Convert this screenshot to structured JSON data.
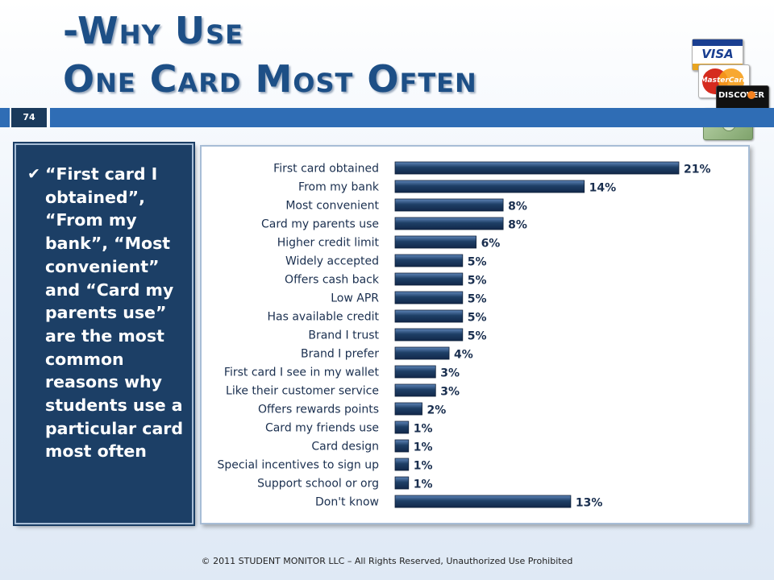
{
  "title": {
    "line1": "-Why Use",
    "line2": "One Card Most Often"
  },
  "page_number": "74",
  "colors": {
    "title": "#1d4f86",
    "band": "#2f6db5",
    "panel": "#1c3f66",
    "bar": "#1e3f66",
    "bar_light": "#5f85b8"
  },
  "card_logos": {
    "visa": "VISA",
    "mastercard": "MasterCard",
    "discover": "DISCOVER"
  },
  "bullet": {
    "icon": "checkmark-icon",
    "text": "“First card I obtained”, “From my bank”, “Most convenient” and “Card my parents use” are the most common reasons why students use a particular card most often"
  },
  "chart_data": {
    "type": "bar",
    "orientation": "horizontal",
    "categories": [
      "First card obtained",
      "From my bank",
      "Most convenient",
      "Card my parents use",
      "Higher credit limit",
      "Widely accepted",
      "Offers cash back",
      "Low APR",
      "Has available credit",
      "Brand I trust",
      "Brand I prefer",
      "First card I see in my wallet",
      "Like their customer service",
      "Offers rewards points",
      "Card my friends use",
      "Card design",
      "Special incentives to sign up",
      "Support school or org",
      "Don't know"
    ],
    "values": [
      21,
      14,
      8,
      8,
      6,
      5,
      5,
      5,
      5,
      5,
      4,
      3,
      3,
      2,
      1,
      1,
      1,
      1,
      13
    ],
    "value_labels": [
      "21%",
      "14%",
      "8%",
      "8%",
      "6%",
      "5%",
      "5%",
      "5%",
      "5%",
      "5%",
      "4%",
      "3%",
      "3%",
      "2%",
      "1%",
      "1%",
      "1%",
      "1%",
      "13%"
    ],
    "xlim": [
      0,
      21
    ],
    "grid": false,
    "legend": false
  },
  "footer": "© 2011 STUDENT MONITOR LLC – All Rights Reserved, Unauthorized Use Prohibited"
}
